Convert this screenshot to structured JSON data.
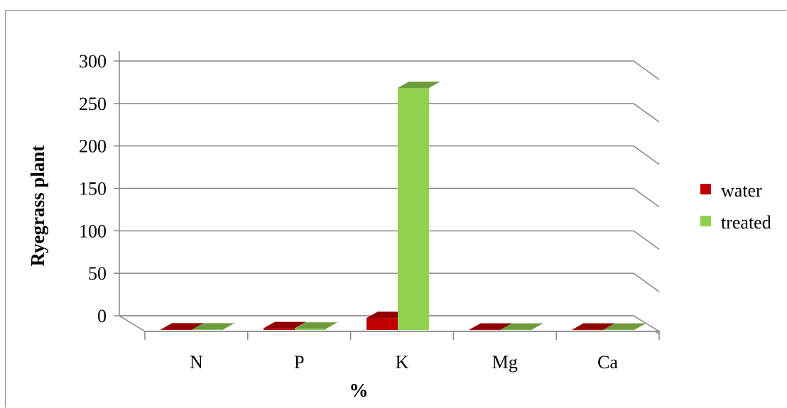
{
  "chart_data": {
    "type": "bar",
    "style": "3d-clustered-column",
    "categories": [
      "N",
      "P",
      "K",
      "Mg",
      "Ca"
    ],
    "series": [
      {
        "name": "water",
        "values": [
          0.5,
          2,
          14,
          0.3,
          0.3
        ],
        "color": "#c00000"
      },
      {
        "name": "treated",
        "values": [
          0.5,
          1.5,
          285,
          0.3,
          0.3
        ],
        "color": "#92d050"
      }
    ],
    "ylim": [
      0,
      300
    ],
    "yticks": [
      "0",
      "50",
      "100",
      "150",
      "200",
      "250",
      "300"
    ],
    "xlabel": "%",
    "ylabel": "Ryegrass plant",
    "grid": true,
    "legend_position": "right"
  }
}
